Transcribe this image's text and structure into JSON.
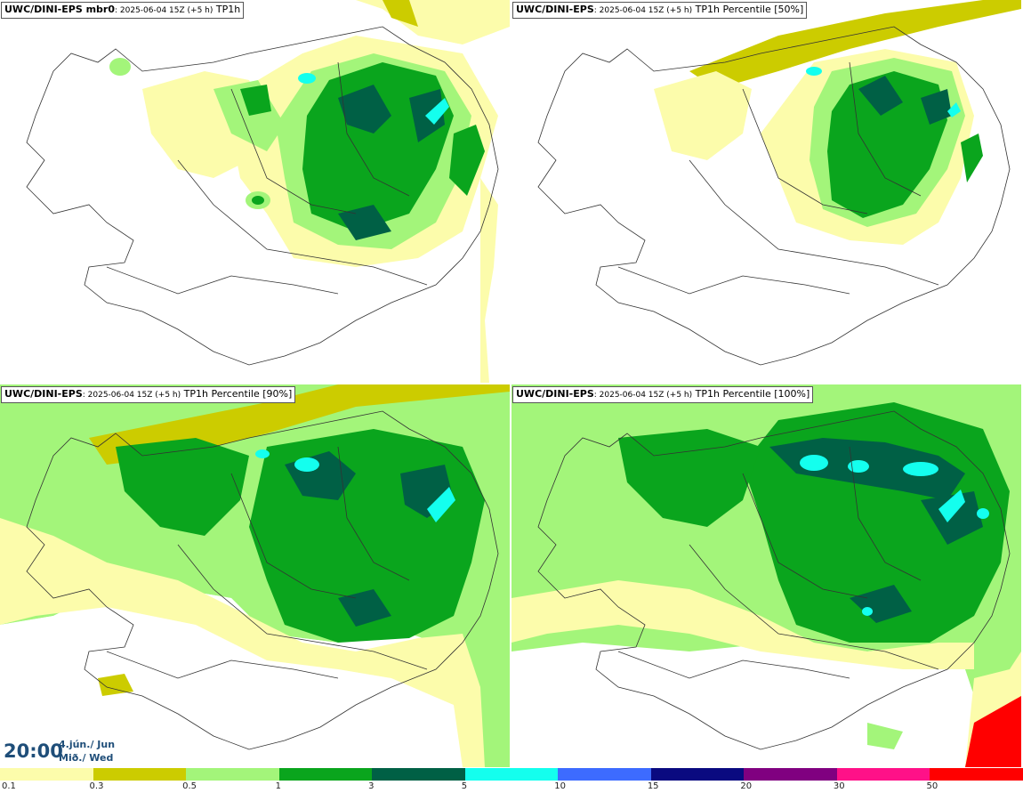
{
  "panels": [
    {
      "model": "UWC/DINI-EPS mbr0",
      "run": ": 2025-06-04 15Z (+5 h)",
      "field": " TP1h"
    },
    {
      "model": "UWC/DINI-EPS",
      "run": ": 2025-06-04 15Z (+5 h)",
      "field": " TP1h Percentile [50%]"
    },
    {
      "model": "UWC/DINI-EPS",
      "run": ": 2025-06-04 15Z (+5 h)",
      "field": " TP1h Percentile [90%]"
    },
    {
      "model": "UWC/DINI-EPS",
      "run": ": 2025-06-04 15Z (+5 h)",
      "field": " TP1h Percentile [100%]"
    }
  ],
  "valid_time": {
    "time": "20:00",
    "date_line": "4.jún./ Jun",
    "day_line": "Mið./ Wed"
  },
  "legend": {
    "labels": [
      "0.1",
      "0.3",
      "0.5",
      "1",
      "3",
      "5",
      "10",
      "15",
      "20",
      "30",
      "50"
    ],
    "colors": [
      "#fcfcab",
      "#cccc00",
      "#a3f57a",
      "#0aa51d",
      "#006045",
      "#14ffee",
      "#3d6bff",
      "#0a0a80",
      "#800080",
      "#ff1188",
      "#ff0000"
    ]
  },
  "colors": {
    "light_yellow": "#fcfcab",
    "olive": "#cccc00",
    "light_green": "#a3f57a",
    "green": "#0aa51d",
    "dark_green": "#006045",
    "cyan": "#14ffee",
    "coast": "#333333"
  }
}
